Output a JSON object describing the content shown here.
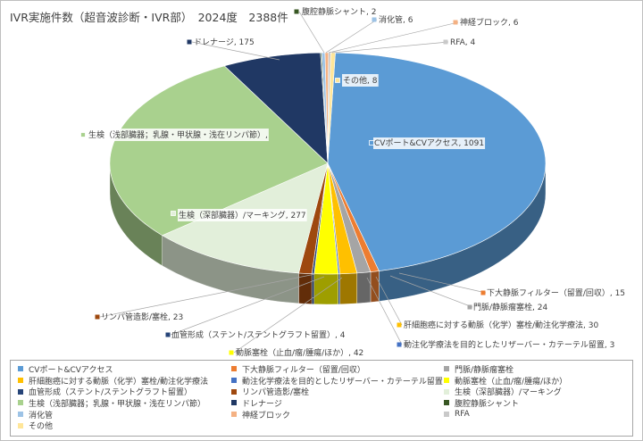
{
  "title": "IVR実施件数（超音波診断・IVR部）　2024度　2388件",
  "chart_data": {
    "type": "pie",
    "title": "IVR実施件数（超音波診断・IVR部）　2024度　2388件",
    "style": "3d-pie",
    "legend_position": "bottom",
    "slices": [
      {
        "name": "CVポート&CVアクセス",
        "label": "CVポート&CVアクセス, 1091",
        "value": 1091,
        "color": "#5b9bd5"
      },
      {
        "name": "下大静脈フィルター（留置/回収）",
        "label": "下大静脈フィルター（留置/回収）, 15",
        "value": 15,
        "color": "#ed7d31"
      },
      {
        "name": "門脈/静脈瘤塞栓",
        "label": "門脈/静脈瘤塞栓, 24",
        "value": 24,
        "color": "#a5a5a5"
      },
      {
        "name": "肝細胞癌に対する動脈（化学）塞栓/動注化学療法",
        "label": "肝細胞癌に対する動脈（化学）塞栓/動注化学療法, 30",
        "value": 30,
        "color": "#ffc000"
      },
      {
        "name": "動注化学療法を目的としたリザーバー・カテーテル留置",
        "label": "動注化学療法を目的としたリザーバー・カテーテル留置, 3",
        "value": 3,
        "color": "#4472c4"
      },
      {
        "name": "動脈塞栓（止血/瘤/腫瘍/ほか）",
        "label": "動脈塞栓（止血/瘤/腫瘍/ほか）, 42",
        "value": 42,
        "color": "#ffff00"
      },
      {
        "name": "血管形成（ステント/ステントグラフト留置）",
        "label": "血管形成（ステント/ステントグラフト留置）, 4",
        "value": 4,
        "color": "#264478"
      },
      {
        "name": "リンパ管造影/塞栓",
        "label": "リンパ管造影/塞栓, 23",
        "value": 23,
        "color": "#9e480e"
      },
      {
        "name": "生検（深部臓器）/マーキング",
        "label": "生検（深部臓器）/マーキング, 277",
        "value": 277,
        "color": "#e2efda"
      },
      {
        "name": "生検（浅部臓器；乳腺・甲状腺・浅在リンパ節）",
        "label": "生検（浅部臓器；乳腺・甲状腺・浅在リンパ節）,",
        "value": 679,
        "color": "#a9d18e"
      },
      {
        "name": "ドレナージ",
        "label": "ドレナージ, 175",
        "value": 175,
        "color": "#203864"
      },
      {
        "name": "腹腔静脈シャント",
        "label": "腹腔静脈シャント, 2",
        "value": 2,
        "color": "#385723"
      },
      {
        "name": "消化管",
        "label": "消化管, 6",
        "value": 6,
        "color": "#9dc3e6"
      },
      {
        "name": "神経ブロック",
        "label": "神経ブロック, 6",
        "value": 6,
        "color": "#f4b183"
      },
      {
        "name": "RFA",
        "label": "RFA, 4",
        "value": 4,
        "color": "#c9c9c9"
      },
      {
        "name": "その他",
        "label": "その他, 8",
        "value": 8,
        "color": "#ffe699"
      }
    ]
  }
}
